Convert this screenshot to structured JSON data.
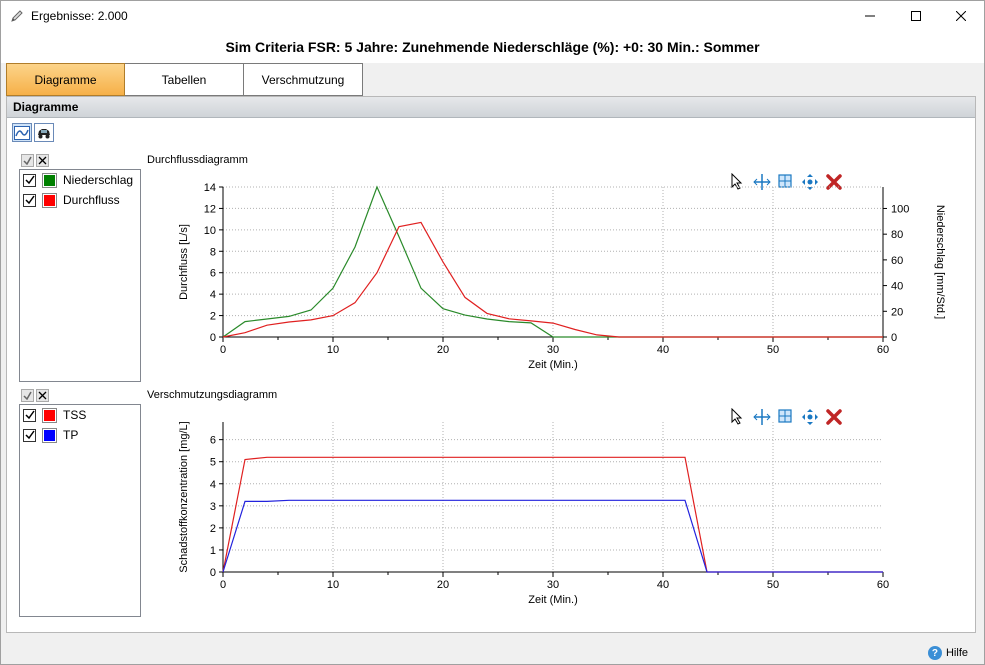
{
  "window": {
    "title": "Ergebnisse: 2.000",
    "app_icon": "pencil-icon"
  },
  "header": {
    "title": "Sim Criteria FSR: 5 Jahre: Zunehmende Niederschläge (%): +0: 30 Min.: Sommer"
  },
  "tabs": [
    {
      "label": "Diagramme",
      "active": true
    },
    {
      "label": "Tabellen",
      "active": false
    },
    {
      "label": "Verschmutzung",
      "active": false
    }
  ],
  "section": {
    "title": "Diagramme"
  },
  "view_buttons": [
    "chart-view-icon",
    "car-view-icon"
  ],
  "footer": {
    "help_label": "Hilfe"
  },
  "colors": {
    "tab_active": "#f6b048",
    "green": "#2a8a2a",
    "red": "#e02020",
    "blue": "#2222dd"
  },
  "legend1": {
    "items": [
      {
        "label": "Niederschlag",
        "color": "#008000",
        "checked": true
      },
      {
        "label": "Durchfluss",
        "color": "#ff0000",
        "checked": true
      }
    ]
  },
  "legend2": {
    "items": [
      {
        "label": "TSS",
        "color": "#ff0000",
        "checked": true
      },
      {
        "label": "TP",
        "color": "#0000ff",
        "checked": true
      }
    ]
  },
  "chart_data": [
    {
      "type": "line",
      "title": "Durchflussdiagramm",
      "xlabel": "Zeit (Min.)",
      "ylabel": "Durchfluss [L/s]",
      "y2label": "Niederschlag [mm/Std.]",
      "xlim": [
        0,
        60
      ],
      "ylim": [
        0,
        14
      ],
      "y2lim": [
        0,
        116.7
      ],
      "xticks": [
        0,
        10,
        20,
        30,
        40,
        50,
        60
      ],
      "yticks": [
        0,
        2,
        4,
        6,
        8,
        10,
        12,
        14
      ],
      "y2ticks": [
        0,
        20,
        40,
        60,
        80,
        100
      ],
      "grid": true,
      "series": [
        {
          "name": "Niederschlag",
          "axis": "right",
          "color": "#2a8a2a",
          "x": [
            0,
            2,
            4,
            6,
            8,
            10,
            12,
            14,
            16,
            18,
            20,
            22,
            24,
            26,
            28,
            30,
            60
          ],
          "y": [
            0,
            12,
            14,
            16,
            21,
            38,
            70,
            116.7,
            78,
            38,
            22,
            17,
            14,
            12,
            11,
            0,
            0
          ]
        },
        {
          "name": "Durchfluss",
          "axis": "left",
          "color": "#e02020",
          "x": [
            0,
            2,
            4,
            6,
            8,
            10,
            12,
            14,
            16,
            18,
            20,
            22,
            24,
            26,
            28,
            30,
            32,
            34,
            36,
            60
          ],
          "y": [
            0,
            0.4,
            1.1,
            1.4,
            1.6,
            2.0,
            3.2,
            6.0,
            10.3,
            10.7,
            7.0,
            3.7,
            2.2,
            1.7,
            1.5,
            1.3,
            0.7,
            0.2,
            0,
            0
          ]
        }
      ]
    },
    {
      "type": "line",
      "title": "Verschmutzungsdiagramm",
      "xlabel": "Zeit (Min.)",
      "ylabel": "Schadstoffkonzentration [mg/L]",
      "xlim": [
        0,
        60
      ],
      "ylim": [
        0,
        6.8
      ],
      "xticks": [
        0,
        10,
        20,
        30,
        40,
        50,
        60
      ],
      "yticks": [
        0,
        1,
        2,
        3,
        4,
        5,
        6
      ],
      "grid": true,
      "series": [
        {
          "name": "TSS",
          "axis": "left",
          "color": "#e02020",
          "x": [
            0,
            2,
            4,
            6,
            42,
            44,
            60
          ],
          "y": [
            0,
            5.1,
            5.2,
            5.2,
            5.2,
            0,
            0
          ]
        },
        {
          "name": "TP",
          "axis": "left",
          "color": "#2222dd",
          "x": [
            0,
            2,
            4,
            6,
            42,
            44,
            60
          ],
          "y": [
            0,
            3.2,
            3.2,
            3.25,
            3.25,
            0,
            0
          ]
        }
      ]
    }
  ],
  "chart_tools": [
    "pointer-icon",
    "crosshair-icon",
    "zoom-box-icon",
    "pan-icon",
    "clear-icon"
  ]
}
